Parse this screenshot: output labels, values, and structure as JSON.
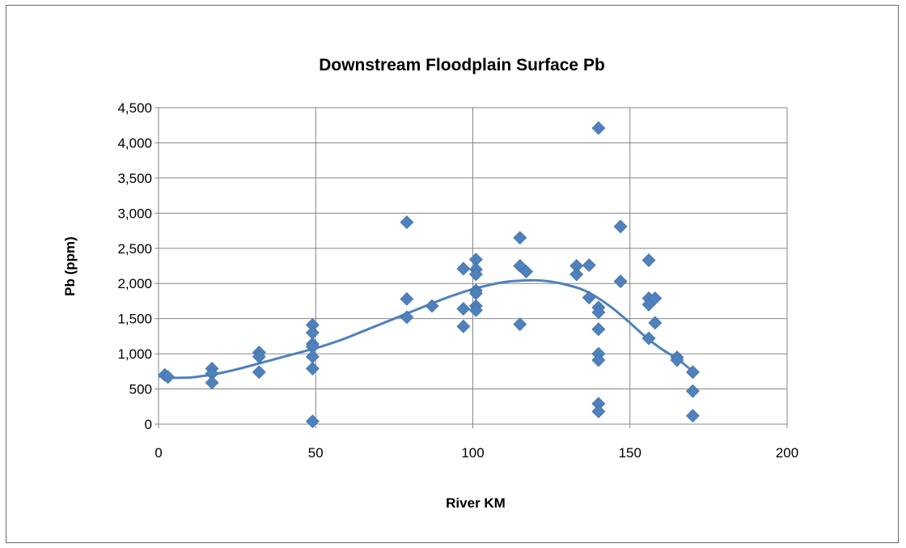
{
  "chart_data": {
    "type": "scatter",
    "title": "Downstream Floodplain Surface Pb",
    "xlabel": "River KM",
    "ylabel": "Pb (ppm)",
    "xlim": [
      0,
      200
    ],
    "ylim": [
      0,
      4500
    ],
    "x_ticks": [
      "0",
      "50",
      "100",
      "150",
      "200"
    ],
    "y_ticks": [
      "0",
      "500",
      "1,000",
      "1,500",
      "2,000",
      "2,500",
      "3,000",
      "3,500",
      "4,000",
      "4,500"
    ],
    "grid": true,
    "legend": "none",
    "marker": "diamond",
    "colors": {
      "points": "#4f81bd",
      "trendline": "#4f81bd",
      "gridlines": "#868686",
      "axis": "#868686"
    },
    "series": [
      {
        "points": [
          [
            2,
            700
          ],
          [
            3,
            670
          ],
          [
            17,
            790
          ],
          [
            17,
            720
          ],
          [
            17,
            590
          ],
          [
            32,
            1020
          ],
          [
            32,
            960
          ],
          [
            32,
            740
          ],
          [
            49,
            1410
          ],
          [
            49,
            1300
          ],
          [
            49,
            1140
          ],
          [
            49,
            1100
          ],
          [
            49,
            960
          ],
          [
            49,
            790
          ],
          [
            49,
            40
          ],
          [
            79,
            2870
          ],
          [
            79,
            1780
          ],
          [
            79,
            1520
          ],
          [
            87,
            1680
          ],
          [
            97,
            2210
          ],
          [
            97,
            1640
          ],
          [
            97,
            1390
          ],
          [
            101,
            2340
          ],
          [
            101,
            2200
          ],
          [
            101,
            2130
          ],
          [
            101,
            1900
          ],
          [
            101,
            1860
          ],
          [
            101,
            1680
          ],
          [
            101,
            1620
          ],
          [
            115,
            2650
          ],
          [
            115,
            2250
          ],
          [
            115,
            1420
          ],
          [
            117,
            2170
          ],
          [
            133,
            2250
          ],
          [
            133,
            2130
          ],
          [
            137,
            2260
          ],
          [
            137,
            1800
          ],
          [
            140,
            4210
          ],
          [
            140,
            1660
          ],
          [
            140,
            1590
          ],
          [
            140,
            1350
          ],
          [
            140,
            1000
          ],
          [
            140,
            910
          ],
          [
            140,
            290
          ],
          [
            140,
            180
          ],
          [
            147,
            2810
          ],
          [
            147,
            2030
          ],
          [
            156,
            2330
          ],
          [
            156,
            1790
          ],
          [
            156,
            1700
          ],
          [
            156,
            1220
          ],
          [
            158,
            1790
          ],
          [
            158,
            1440
          ],
          [
            165,
            950
          ],
          [
            165,
            910
          ],
          [
            170,
            740
          ],
          [
            170,
            470
          ],
          [
            170,
            120
          ]
        ]
      }
    ],
    "trendline": {
      "type": "polynomial",
      "points": [
        [
          0,
          680
        ],
        [
          5,
          660
        ],
        [
          10,
          663
        ],
        [
          15,
          690
        ],
        [
          20,
          730
        ],
        [
          25,
          780
        ],
        [
          30,
          840
        ],
        [
          35,
          900
        ],
        [
          40,
          960
        ],
        [
          45,
          1020
        ],
        [
          50,
          1080
        ],
        [
          55,
          1150
        ],
        [
          60,
          1230
        ],
        [
          65,
          1320
        ],
        [
          70,
          1410
        ],
        [
          75,
          1500
        ],
        [
          80,
          1590
        ],
        [
          85,
          1680
        ],
        [
          90,
          1770
        ],
        [
          95,
          1850
        ],
        [
          100,
          1920
        ],
        [
          105,
          1975
        ],
        [
          110,
          2020
        ],
        [
          115,
          2040
        ],
        [
          120,
          2045
        ],
        [
          125,
          2025
        ],
        [
          130,
          1980
        ],
        [
          135,
          1910
        ],
        [
          140,
          1790
        ],
        [
          145,
          1630
        ],
        [
          150,
          1440
        ],
        [
          155,
          1240
        ],
        [
          160,
          1070
        ],
        [
          165,
          930
        ],
        [
          170,
          750
        ]
      ]
    }
  }
}
